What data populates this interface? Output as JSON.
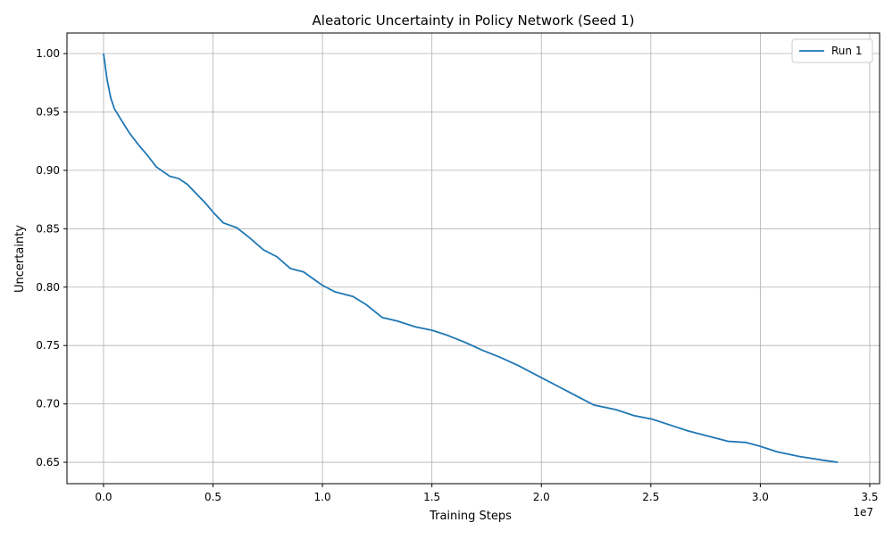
{
  "chart_data": {
    "type": "line",
    "title": "Aleatoric Uncertainty in Policy Network (Seed 1)",
    "x_label": "Training Steps",
    "y_label": "Uncertainty",
    "x_offset_label": "1e7",
    "x": [
      0,
      0.016,
      0.033,
      0.049,
      0.078,
      0.118,
      0.159,
      0.2,
      0.241,
      0.302,
      0.343,
      0.383,
      0.424,
      0.465,
      0.506,
      0.547,
      0.608,
      0.669,
      0.73,
      0.792,
      0.853,
      0.914,
      0.996,
      1.057,
      1.139,
      1.2,
      1.273,
      1.342,
      1.424,
      1.501,
      1.567,
      1.648,
      1.73,
      1.811,
      1.893,
      1.995,
      2.077,
      2.158,
      2.24,
      2.342,
      2.423,
      2.505,
      2.587,
      2.668,
      2.75,
      2.852,
      2.933,
      2.995,
      3.076,
      3.178,
      3.28,
      3.354
    ],
    "series": [
      {
        "name": "Run 1",
        "color": "#1f77b4",
        "values": [
          1.0,
          0.978,
          0.962,
          0.953,
          0.944,
          0.932,
          0.922,
          0.913,
          0.903,
          0.895,
          0.893,
          0.888,
          0.88,
          0.872,
          0.863,
          0.855,
          0.851,
          0.842,
          0.832,
          0.826,
          0.816,
          0.813,
          0.802,
          0.796,
          0.792,
          0.785,
          0.774,
          0.771,
          0.766,
          0.763,
          0.759,
          0.753,
          0.746,
          0.74,
          0.733,
          0.723,
          0.715,
          0.707,
          0.699,
          0.695,
          0.69,
          0.687,
          0.682,
          0.677,
          0.673,
          0.668,
          0.667,
          0.664,
          0.659,
          0.655,
          0.652,
          0.65
        ]
      }
    ],
    "xlim": [
      -0.167,
      3.545
    ],
    "ylim": [
      0.6317,
      1.0176
    ],
    "xticks": [
      {
        "value": 0,
        "label": "0.0"
      },
      0.5,
      {
        "value": 1,
        "label": "1.0"
      },
      1.5,
      {
        "value": 2,
        "label": "2.0"
      },
      2.5,
      {
        "value": 3,
        "label": "3.0"
      },
      3.5
    ],
    "yticks": [
      0.65,
      {
        "value": 0.7,
        "label": "0.70"
      },
      0.75,
      {
        "value": 0.8,
        "label": "0.80"
      },
      0.85,
      {
        "value": 0.9,
        "label": "0.90"
      },
      0.95,
      {
        "value": 1,
        "label": "1.00"
      }
    ],
    "grid": true,
    "legend": "upper right"
  }
}
